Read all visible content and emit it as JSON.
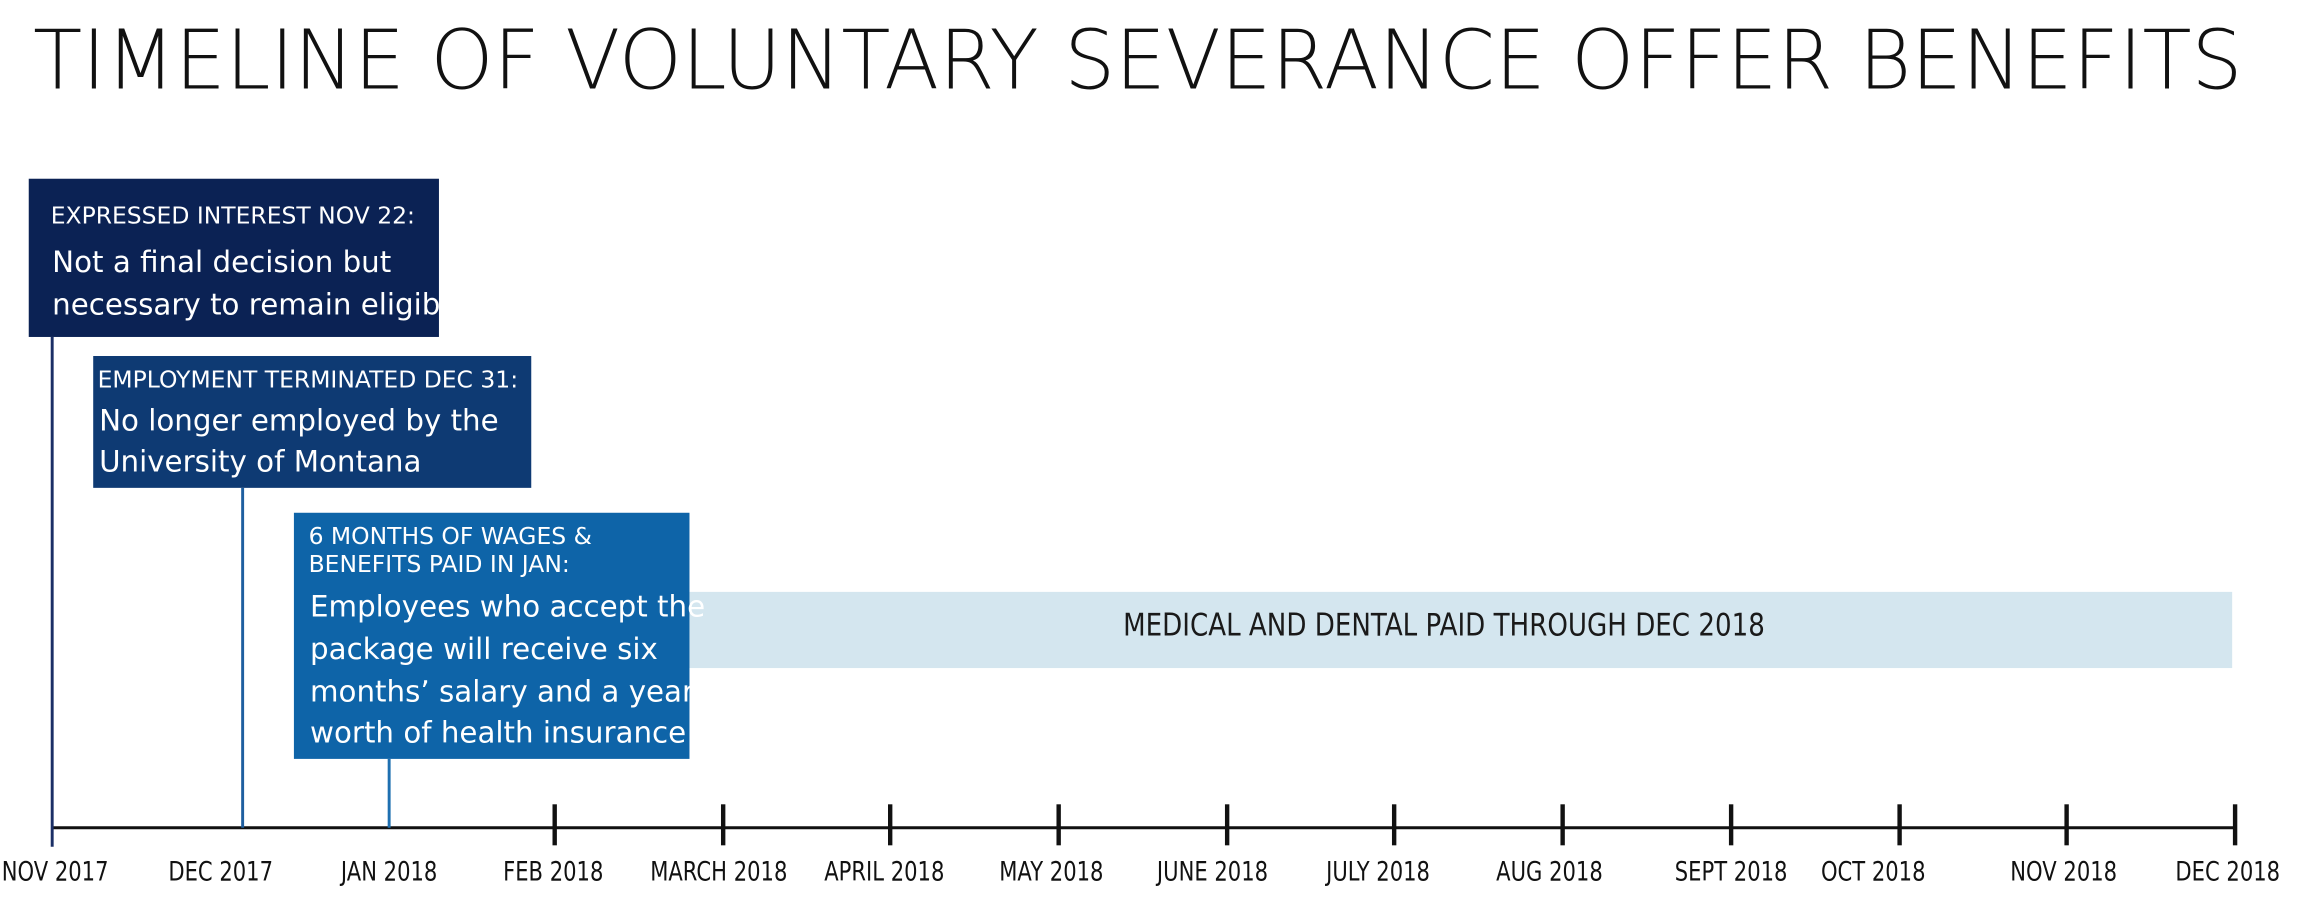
{
  "title": "TIMELINE OF VOLUNTARY SEVERANCE OFFER BENEFITS",
  "events": [
    {
      "heading": [
        "EXPRESSED INTEREST NOV 22:"
      ],
      "body": [
        "Not a final decision but",
        "necessary to remain eligible"
      ]
    },
    {
      "heading": [
        "EMPLOYMENT TERMINATED  DEC 31:"
      ],
      "body": [
        "No longer employed by the",
        "University of Montana"
      ]
    },
    {
      "heading": [
        "6 MONTHS OF  WAGES &",
        "BENEFITS PAID IN JAN:"
      ],
      "body": [
        "Employees who accept the",
        "package will receive six",
        "months’ salary and a year’s",
        "worth of health insurance"
      ]
    }
  ],
  "band": "MEDICAL AND DENTAL PAID THROUGH DEC 2018",
  "axis_labels": [
    "NOV 2017",
    "DEC 2017",
    "JAN 2018",
    "FEB 2018",
    "MARCH 2018",
    "APRIL 2018",
    "MAY 2018",
    "JUNE 2018",
    "JULY 2018",
    "AUG 2018",
    "SEPT 2018",
    "OCT 2018",
    "NOV 2018",
    "DEC 2018"
  ]
}
